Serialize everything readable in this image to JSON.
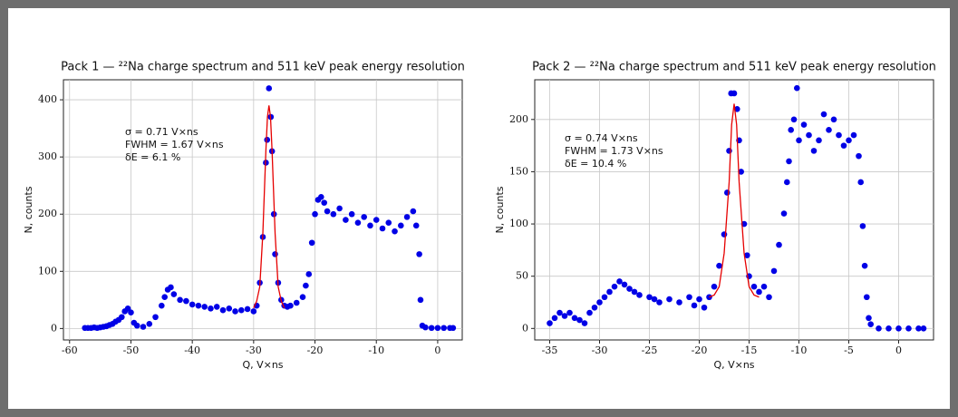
{
  "chart_data": [
    {
      "type": "scatter",
      "title": "Pack 1 — ²²Na charge spectrum and 511 keV peak energy resolution",
      "x_label": "Q, V×ns",
      "y_label": "N, counts",
      "annotations": [
        "σ = 0.71 V×ns",
        "FWHM = 1.67 V×ns",
        "δE = 6.1 %"
      ],
      "xlim": [
        -61,
        4
      ],
      "ylim": [
        -20,
        435
      ],
      "xticks": [
        -60,
        -50,
        -40,
        -30,
        -20,
        -10,
        0
      ],
      "yticks": [
        0,
        100,
        200,
        300,
        400
      ],
      "grid": true,
      "series": [
        {
          "mode": "markers",
          "color": "#0000e6",
          "x": [
            -57.5,
            -57,
            -56.5,
            -56,
            -55.5,
            -55,
            -54.5,
            -54,
            -53.5,
            -53,
            -52.5,
            -52,
            -51.5,
            -51,
            -50.5,
            -50,
            -49.5,
            -49,
            -48,
            -47,
            -46,
            -45,
            -44.5,
            -44,
            -43.5,
            -43,
            -42,
            -41,
            -40,
            -39,
            -38,
            -37,
            -36,
            -35,
            -34,
            -33,
            -32,
            -31,
            -30,
            -29.5,
            -29,
            -28.5,
            -28,
            -27.8,
            -27.5,
            -27.2,
            -27,
            -26.7,
            -26.5,
            -26,
            -25.5,
            -25,
            -24.5,
            -24,
            -23,
            -22,
            -21.5,
            -21,
            -20.5,
            -20,
            -19.5,
            -19,
            -18.5,
            -18,
            -17,
            -16,
            -15,
            -14,
            -13,
            -12,
            -11,
            -10,
            -9,
            -8,
            -7,
            -6,
            -5,
            -4,
            -3.5,
            -3,
            -2.8,
            -2.5,
            -2,
            -1,
            0,
            1,
            2,
            2.5
          ],
          "values": [
            1,
            1,
            1,
            2,
            1,
            2,
            3,
            4,
            6,
            8,
            12,
            15,
            20,
            30,
            35,
            28,
            10,
            5,
            3,
            8,
            20,
            40,
            55,
            68,
            72,
            60,
            50,
            48,
            42,
            40,
            38,
            35,
            38,
            32,
            35,
            30,
            32,
            34,
            30,
            40,
            80,
            160,
            290,
            330,
            420,
            370,
            310,
            200,
            130,
            80,
            50,
            40,
            38,
            40,
            45,
            55,
            75,
            95,
            150,
            200,
            225,
            230,
            220,
            205,
            200,
            210,
            190,
            200,
            185,
            195,
            180,
            190,
            175,
            185,
            170,
            180,
            195,
            205,
            180,
            130,
            50,
            5,
            2,
            1,
            1,
            1,
            1,
            1
          ]
        },
        {
          "mode": "line",
          "color": "#e60000",
          "x": [
            -30,
            -29.5,
            -29,
            -28.5,
            -28,
            -27.75,
            -27.5,
            -27.25,
            -27,
            -26.5,
            -26,
            -25.5,
            -25
          ],
          "values": [
            36,
            48,
            73,
            166,
            312,
            370,
            390,
            370,
            312,
            166,
            73,
            48,
            36
          ]
        }
      ]
    },
    {
      "type": "scatter",
      "title": "Pack 2 — ²²Na charge spectrum and 511 keV peak energy resolution",
      "x_label": "Q, V×ns",
      "y_label": "N, counts",
      "annotations": [
        "σ = 0.74 V×ns",
        "FWHM = 1.73 V×ns",
        "δE = 10.4 %"
      ],
      "xlim": [
        -36.5,
        3.5
      ],
      "ylim": [
        -11,
        238
      ],
      "xticks": [
        -35,
        -30,
        -25,
        -20,
        -15,
        -10,
        -5,
        0
      ],
      "yticks": [
        0,
        50,
        100,
        150,
        200
      ],
      "grid": true,
      "series": [
        {
          "mode": "markers",
          "color": "#0000e6",
          "x": [
            -35,
            -34.5,
            -34,
            -33.5,
            -33,
            -32.5,
            -32,
            -31.5,
            -31,
            -30.5,
            -30,
            -29.5,
            -29,
            -28.5,
            -28,
            -27.5,
            -27,
            -26.5,
            -26,
            -25,
            -24.5,
            -24,
            -23,
            -22,
            -21,
            -20.5,
            -20,
            -19.5,
            -19,
            -18.5,
            -18,
            -17.5,
            -17.2,
            -17,
            -16.8,
            -16.5,
            -16.2,
            -16,
            -15.8,
            -15.5,
            -15.2,
            -15,
            -14.5,
            -14,
            -13.5,
            -13,
            -12.5,
            -12,
            -11.5,
            -11.2,
            -11,
            -10.8,
            -10.5,
            -10.2,
            -10,
            -9.5,
            -9,
            -8.5,
            -8,
            -7.5,
            -7,
            -6.5,
            -6,
            -5.5,
            -5,
            -4.5,
            -4,
            -3.8,
            -3.6,
            -3.4,
            -3.2,
            -3,
            -2.8,
            -2,
            -1,
            0,
            1,
            2,
            2.5
          ],
          "values": [
            5,
            10,
            15,
            12,
            15,
            10,
            8,
            5,
            15,
            20,
            25,
            30,
            35,
            40,
            45,
            42,
            38,
            35,
            32,
            30,
            28,
            25,
            28,
            25,
            30,
            22,
            28,
            20,
            30,
            40,
            60,
            90,
            130,
            170,
            225,
            225,
            210,
            180,
            150,
            100,
            70,
            50,
            40,
            35,
            40,
            30,
            55,
            80,
            110,
            140,
            160,
            190,
            200,
            230,
            180,
            195,
            185,
            170,
            180,
            205,
            190,
            200,
            185,
            175,
            180,
            185,
            165,
            140,
            98,
            60,
            30,
            10,
            4,
            0,
            0,
            0,
            0,
            0,
            0
          ]
        },
        {
          "mode": "line",
          "color": "#e60000",
          "x": [
            -19,
            -18.5,
            -18,
            -17.5,
            -17,
            -16.75,
            -16.5,
            -16.25,
            -16,
            -15.5,
            -15,
            -14.5,
            -14
          ],
          "values": [
            30,
            32,
            40,
            72,
            140,
            195,
            215,
            195,
            140,
            72,
            40,
            32,
            30
          ]
        }
      ]
    }
  ]
}
